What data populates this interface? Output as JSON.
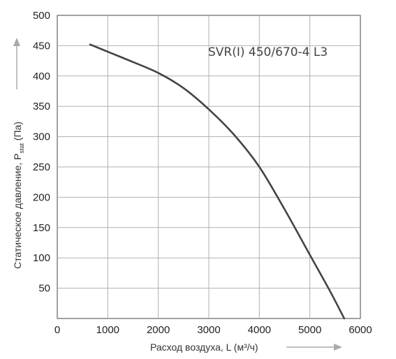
{
  "chart_data": {
    "type": "line",
    "xlabel": "Расход воздуха, L (м³/ч)",
    "ylabel": "Статическое давление, P",
    "ylabel_sub": "stat",
    "ylabel_unit": " (Па)",
    "xlim": [
      0,
      6000
    ],
    "ylim": [
      0,
      500
    ],
    "x_ticks": [
      0,
      1000,
      2000,
      3000,
      4000,
      5000,
      6000
    ],
    "y_ticks": [
      50,
      100,
      150,
      200,
      250,
      300,
      350,
      400,
      450,
      500
    ],
    "grid": true,
    "series": [
      {
        "name": "SVR(I) 450/670-4 L3",
        "x": [
          650,
          1000,
          1500,
          2000,
          2500,
          3000,
          3500,
          4000,
          4500,
          5000,
          5400,
          5680
        ],
        "y": [
          452,
          440,
          423,
          405,
          380,
          345,
          303,
          250,
          180,
          105,
          45,
          0
        ]
      }
    ],
    "colors": {
      "line": "#444444",
      "grid": "#b0b0b0",
      "arrow": "#aaaaaa"
    }
  }
}
